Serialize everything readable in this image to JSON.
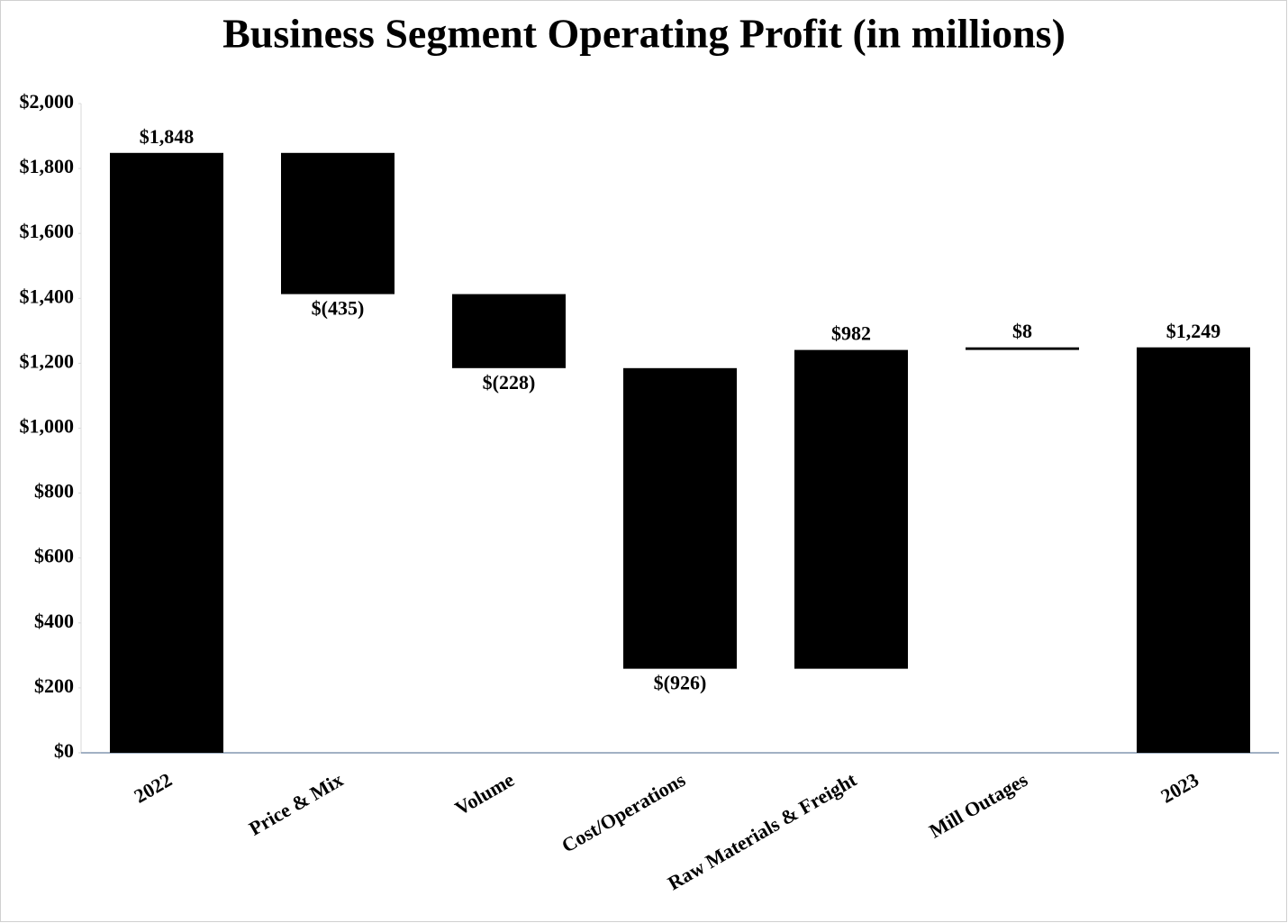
{
  "chart_data": {
    "type": "waterfall",
    "title": "Business Segment Operating Profit (in millions)",
    "categories": [
      "2022",
      "Price & Mix",
      "Volume",
      "Cost/Operations",
      "Raw Materials & Freight",
      "Mill Outages",
      "2023"
    ],
    "values": [
      1848,
      -435,
      -228,
      -926,
      982,
      8,
      1249
    ],
    "value_labels": [
      "$1,848",
      "$(435)",
      "$(228)",
      "$(926)",
      "$982",
      "$8",
      "$1,249"
    ],
    "last_is_total": true,
    "color": "#000000",
    "ylim": [
      0,
      2000
    ],
    "yticks": [
      {
        "value": 0,
        "label": "$0"
      },
      {
        "value": 200,
        "label": "$200"
      },
      {
        "value": 400,
        "label": "$400"
      },
      {
        "value": 600,
        "label": "$600"
      },
      {
        "value": 800,
        "label": "$800"
      },
      {
        "value": 1000,
        "label": "$1,000"
      },
      {
        "value": 1200,
        "label": "$1,200"
      },
      {
        "value": 1400,
        "label": "$1,400"
      },
      {
        "value": 1600,
        "label": "$1,600"
      },
      {
        "value": 1800,
        "label": "$1,800"
      },
      {
        "value": 2000,
        "label": "$2,000"
      }
    ],
    "grid": false
  }
}
